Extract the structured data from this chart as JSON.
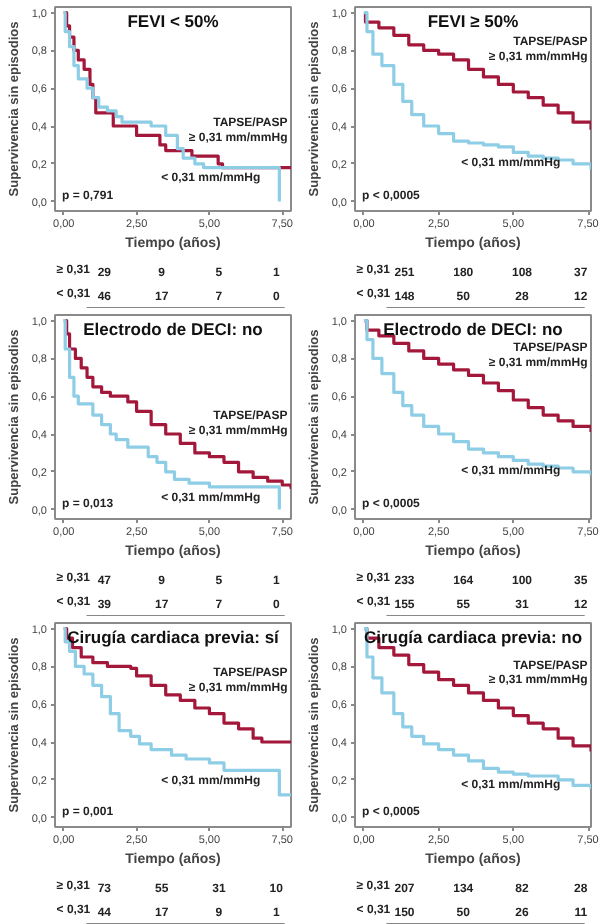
{
  "chart_data": [
    {
      "type": "step",
      "title": "FEVI < 50%",
      "xlabel": "Tiempo (años)",
      "ylabel": "Supervivencia sin episodios",
      "xlim": [
        -0.3,
        7.8
      ],
      "xticks": [
        {
          "value": 0,
          "label": "0,00"
        },
        {
          "value": 2.5,
          "label": "2,50"
        },
        {
          "value": 5,
          "label": "5,00"
        },
        {
          "value": 7.5,
          "label": "7,50"
        }
      ],
      "ylim": [
        -0.05,
        1.03
      ],
      "yticks": [
        {
          "value": 0,
          "label": "0,0"
        },
        {
          "value": 0.2,
          "label": "0,2"
        },
        {
          "value": 0.4,
          "label": "0,4"
        },
        {
          "value": 0.6,
          "label": "0,6"
        },
        {
          "value": 0.8,
          "label": "0,8"
        },
        {
          "value": 1,
          "label": "1,0"
        }
      ],
      "series": [
        {
          "name": "TAPSE/PASP\n≥ 0,31 mm/mmHg",
          "color": "#a3173a",
          "x": [
            0,
            0.1,
            0.2,
            0.35,
            0.5,
            0.7,
            0.9,
            1.0,
            1.1,
            1.7,
            2.5,
            3.3,
            3.5,
            4.4,
            5.3,
            5.45,
            7.8
          ],
          "values": [
            1,
            0.93,
            0.87,
            0.8,
            0.75,
            0.7,
            0.62,
            0.55,
            0.47,
            0.4,
            0.35,
            0.3,
            0.27,
            0.24,
            0.2,
            0.18,
            0.18
          ]
        },
        {
          "name": "< 0,31 mm/mmHg",
          "color": "#8ecde6",
          "x": [
            0,
            0.05,
            0.2,
            0.35,
            0.5,
            0.8,
            1.0,
            1.2,
            1.5,
            1.8,
            2.0,
            3.0,
            3.5,
            3.9,
            4.1,
            4.5,
            4.8,
            7.4
          ],
          "values": [
            1,
            0.9,
            0.82,
            0.72,
            0.65,
            0.6,
            0.55,
            0.5,
            0.48,
            0.45,
            0.42,
            0.4,
            0.35,
            0.28,
            0.23,
            0.2,
            0.18,
            0.0
          ]
        }
      ],
      "annotations": [
        "p = 0,791",
        "≥ 0,31",
        "29",
        "9",
        "5",
        "1",
        "< 0,31",
        "46",
        "17",
        "7",
        "0"
      ]
    },
    {
      "type": "step",
      "title": "FEVI ≥ 50%",
      "xlabel": "Tiempo (años)",
      "ylabel": "Supervivencia sin episodios",
      "xlim": [
        -0.3,
        7.6
      ],
      "xticks": [
        {
          "value": 0,
          "label": "0,00"
        },
        {
          "value": 2.5,
          "label": "2,50"
        },
        {
          "value": 5,
          "label": "5,00"
        },
        {
          "value": 7.5,
          "label": "7,50"
        }
      ],
      "ylim": [
        -0.05,
        1.03
      ],
      "yticks": [
        {
          "value": 0,
          "label": "0,0"
        },
        {
          "value": 0.2,
          "label": "0,2"
        },
        {
          "value": 0.4,
          "label": "0,4"
        },
        {
          "value": 0.6,
          "label": "0,6"
        },
        {
          "value": 0.8,
          "label": "0,8"
        },
        {
          "value": 1,
          "label": "1,0"
        }
      ],
      "series": [
        {
          "name": "TAPSE/PASP\n≥ 0,31 mm/mmHg",
          "color": "#a3173a",
          "x": [
            0,
            0.05,
            0.5,
            1,
            1.5,
            2,
            2.5,
            3,
            3.5,
            4,
            4.5,
            5,
            5.5,
            6,
            6.5,
            7,
            7.6
          ],
          "values": [
            1,
            0.95,
            0.92,
            0.88,
            0.83,
            0.8,
            0.78,
            0.75,
            0.7,
            0.66,
            0.62,
            0.58,
            0.55,
            0.51,
            0.47,
            0.42,
            0.38
          ]
        },
        {
          "name": "< 0,31 mm/mmHg",
          "color": "#8ecde6",
          "x": [
            0,
            0.1,
            0.3,
            0.6,
            1,
            1.3,
            1.6,
            2,
            2.5,
            3,
            3.5,
            4,
            4.5,
            5,
            5.5,
            6,
            6.5,
            7,
            7.6
          ],
          "values": [
            1,
            0.9,
            0.78,
            0.72,
            0.62,
            0.53,
            0.46,
            0.4,
            0.36,
            0.32,
            0.31,
            0.3,
            0.29,
            0.26,
            0.24,
            0.23,
            0.22,
            0.2,
            0.17
          ]
        }
      ],
      "annotations": [
        "p < 0,0005",
        "≥ 0,31",
        "251",
        "180",
        "108",
        "37",
        "< 0,31",
        "148",
        "50",
        "28",
        "12"
      ]
    },
    {
      "type": "step",
      "title": "Electrodo de DECI: no",
      "xlabel": "Tiempo (años)",
      "ylabel": "Supervivencia sin episodios",
      "xlim": [
        -0.3,
        7.8
      ],
      "xticks": [
        {
          "value": 0,
          "label": "0,00"
        },
        {
          "value": 2.5,
          "label": "2,50"
        },
        {
          "value": 5,
          "label": "5,00"
        },
        {
          "value": 7.5,
          "label": "7,50"
        }
      ],
      "ylim": [
        -0.05,
        1.03
      ],
      "yticks": [
        {
          "value": 0,
          "label": "0,0"
        },
        {
          "value": 0.2,
          "label": "0,2"
        },
        {
          "value": 0.4,
          "label": "0,4"
        },
        {
          "value": 0.6,
          "label": "0,6"
        },
        {
          "value": 0.8,
          "label": "0,8"
        },
        {
          "value": 1,
          "label": "1,0"
        }
      ],
      "series": [
        {
          "name": "TAPSE/PASP\n≥ 0,31 mm/mmHg",
          "color": "#a3173a",
          "x": [
            0,
            0.1,
            0.2,
            0.4,
            0.6,
            0.8,
            1.0,
            1.3,
            1.6,
            2.2,
            2.5,
            3.0,
            3.5,
            4,
            4.5,
            5.0,
            5.5,
            6,
            6.5,
            7.0,
            7.5,
            7.8
          ],
          "values": [
            1,
            0.93,
            0.85,
            0.8,
            0.75,
            0.7,
            0.65,
            0.62,
            0.6,
            0.57,
            0.52,
            0.45,
            0.4,
            0.35,
            0.3,
            0.28,
            0.25,
            0.2,
            0.17,
            0.15,
            0.13,
            0.11
          ]
        },
        {
          "name": "< 0,31 mm/mmHg",
          "color": "#8ecde6",
          "x": [
            0,
            0.05,
            0.2,
            0.35,
            0.5,
            1.0,
            1.3,
            1.6,
            1.8,
            2.2,
            2.9,
            3.2,
            3.5,
            3.8,
            4.3,
            5.0,
            7.4
          ],
          "values": [
            1,
            0.85,
            0.7,
            0.6,
            0.56,
            0.5,
            0.45,
            0.4,
            0.37,
            0.33,
            0.28,
            0.25,
            0.2,
            0.16,
            0.14,
            0.12,
            0.0
          ]
        }
      ],
      "annotations": [
        "p = 0,013",
        "≥ 0,31",
        "47",
        "9",
        "5",
        "1",
        "< 0,31",
        "39",
        "17",
        "7",
        "0"
      ]
    },
    {
      "type": "step",
      "title": "Electrodo de DECI: no",
      "xlabel": "Tiempo (años)",
      "ylabel": "Supervivencia sin episodios",
      "xlim": [
        -0.3,
        7.6
      ],
      "xticks": [
        {
          "value": 0,
          "label": "0,00"
        },
        {
          "value": 2.5,
          "label": "2,50"
        },
        {
          "value": 5,
          "label": "5,00"
        },
        {
          "value": 7.5,
          "label": "7,50"
        }
      ],
      "ylim": [
        -0.05,
        1.03
      ],
      "yticks": [
        {
          "value": 0,
          "label": "0,0"
        },
        {
          "value": 0.2,
          "label": "0,2"
        },
        {
          "value": 0.4,
          "label": "0,4"
        },
        {
          "value": 0.6,
          "label": "0,6"
        },
        {
          "value": 0.8,
          "label": "0,8"
        },
        {
          "value": 1,
          "label": "1,0"
        }
      ],
      "series": [
        {
          "name": "TAPSE/PASP\n≥ 0,31 mm/mmHg",
          "color": "#a3173a",
          "x": [
            0,
            0.1,
            0.5,
            1,
            1.5,
            2,
            2.5,
            3,
            3.5,
            4,
            4.5,
            5,
            5.5,
            6,
            6.5,
            7,
            7.6
          ],
          "values": [
            1,
            0.95,
            0.92,
            0.88,
            0.84,
            0.8,
            0.77,
            0.74,
            0.71,
            0.67,
            0.63,
            0.58,
            0.54,
            0.5,
            0.47,
            0.44,
            0.41
          ]
        },
        {
          "name": "< 0,31 mm/mmHg",
          "color": "#8ecde6",
          "x": [
            0,
            0.1,
            0.3,
            0.6,
            1,
            1.3,
            1.6,
            2,
            2.5,
            3,
            3.5,
            4,
            4.5,
            5,
            5.5,
            6,
            6.5,
            7,
            7.6
          ],
          "values": [
            1,
            0.9,
            0.8,
            0.72,
            0.62,
            0.55,
            0.5,
            0.44,
            0.4,
            0.36,
            0.32,
            0.3,
            0.28,
            0.26,
            0.24,
            0.23,
            0.22,
            0.2,
            0.18
          ]
        }
      ],
      "annotations": [
        "p < 0,0005",
        "≥ 0,31",
        "233",
        "164",
        "100",
        "35",
        "< 0,31",
        "155",
        "55",
        "31",
        "12"
      ]
    },
    {
      "type": "step",
      "title": "Cirugía cardiaca previa: sí",
      "xlabel": "Tiempo (años)",
      "ylabel": "Supervivencia sin episodios",
      "xlim": [
        -0.3,
        7.8
      ],
      "xticks": [
        {
          "value": 0,
          "label": "0,00"
        },
        {
          "value": 2.5,
          "label": "2,50"
        },
        {
          "value": 5,
          "label": "5,00"
        },
        {
          "value": 7.5,
          "label": "7,50"
        }
      ],
      "ylim": [
        -0.05,
        1.03
      ],
      "yticks": [
        {
          "value": 0,
          "label": "0,0"
        },
        {
          "value": 0.2,
          "label": "0,2"
        },
        {
          "value": 0.4,
          "label": "0,4"
        },
        {
          "value": 0.6,
          "label": "0,6"
        },
        {
          "value": 0.8,
          "label": "0,8"
        },
        {
          "value": 1,
          "label": "1,0"
        }
      ],
      "series": [
        {
          "name": "TAPSE/PASP\n≥ 0,31 mm/mmHg",
          "color": "#a3173a",
          "x": [
            0,
            0.1,
            0.3,
            0.6,
            1,
            1.5,
            2.3,
            2.5,
            3,
            3.5,
            4,
            4.5,
            5,
            5.5,
            6,
            6.5,
            6.8,
            7.8
          ],
          "values": [
            1,
            0.95,
            0.9,
            0.85,
            0.82,
            0.8,
            0.79,
            0.75,
            0.7,
            0.65,
            0.62,
            0.58,
            0.55,
            0.5,
            0.47,
            0.42,
            0.4,
            0.4
          ]
        },
        {
          "name": "< 0,31 mm/mmHg",
          "color": "#8ecde6",
          "x": [
            0,
            0.05,
            0.2,
            0.4,
            0.7,
            1.0,
            1.3,
            1.6,
            1.9,
            2.3,
            2.6,
            3,
            3.7,
            4.2,
            5.0,
            5.5,
            7.3,
            7.4,
            7.8
          ],
          "values": [
            1,
            0.93,
            0.88,
            0.8,
            0.76,
            0.7,
            0.64,
            0.55,
            0.46,
            0.43,
            0.39,
            0.36,
            0.33,
            0.31,
            0.29,
            0.25,
            0.25,
            0.12,
            0.12
          ]
        }
      ],
      "annotations": [
        "p = 0,001",
        "≥ 0,31",
        "73",
        "55",
        "31",
        "10",
        "< 0,31",
        "44",
        "17",
        "9",
        "1"
      ]
    },
    {
      "type": "step",
      "title": "Cirugía cardiaca previa: no",
      "xlabel": "Tiempo (años)",
      "ylabel": "Supervivencia sin episodios",
      "xlim": [
        -0.3,
        7.6
      ],
      "xticks": [
        {
          "value": 0,
          "label": "0,00"
        },
        {
          "value": 2.5,
          "label": "2,50"
        },
        {
          "value": 5,
          "label": "5,00"
        },
        {
          "value": 7.5,
          "label": "7,50"
        }
      ],
      "ylim": [
        -0.05,
        1.03
      ],
      "yticks": [
        {
          "value": 0,
          "label": "0,0"
        },
        {
          "value": 0.2,
          "label": "0,2"
        },
        {
          "value": 0.4,
          "label": "0,4"
        },
        {
          "value": 0.6,
          "label": "0,6"
        },
        {
          "value": 0.8,
          "label": "0,8"
        },
        {
          "value": 1,
          "label": "1,0"
        }
      ],
      "series": [
        {
          "name": "TAPSE/PASP\n≥ 0,31 mm/mmHg",
          "color": "#a3173a",
          "x": [
            0,
            0.1,
            0.5,
            1,
            1.5,
            2,
            2.5,
            3,
            3.5,
            4,
            4.5,
            5,
            5.5,
            6,
            6.5,
            7,
            7.6
          ],
          "values": [
            1,
            0.95,
            0.9,
            0.86,
            0.81,
            0.77,
            0.73,
            0.7,
            0.66,
            0.62,
            0.58,
            0.54,
            0.5,
            0.47,
            0.42,
            0.38,
            0.35
          ]
        },
        {
          "name": "< 0,31 mm/mmHg",
          "color": "#8ecde6",
          "x": [
            0,
            0.1,
            0.3,
            0.6,
            1,
            1.3,
            1.6,
            2,
            2.5,
            3,
            3.5,
            4,
            4.5,
            5,
            5.5,
            6,
            6.5,
            7,
            7.6
          ],
          "values": [
            1,
            0.85,
            0.74,
            0.66,
            0.55,
            0.48,
            0.43,
            0.39,
            0.36,
            0.33,
            0.3,
            0.26,
            0.24,
            0.23,
            0.22,
            0.22,
            0.2,
            0.17,
            0.15
          ]
        }
      ],
      "annotations": [
        "p < 0,0005",
        "≥ 0,31",
        "207",
        "134",
        "82",
        "28",
        "< 0,31",
        "150",
        "50",
        "26",
        "11"
      ]
    }
  ]
}
